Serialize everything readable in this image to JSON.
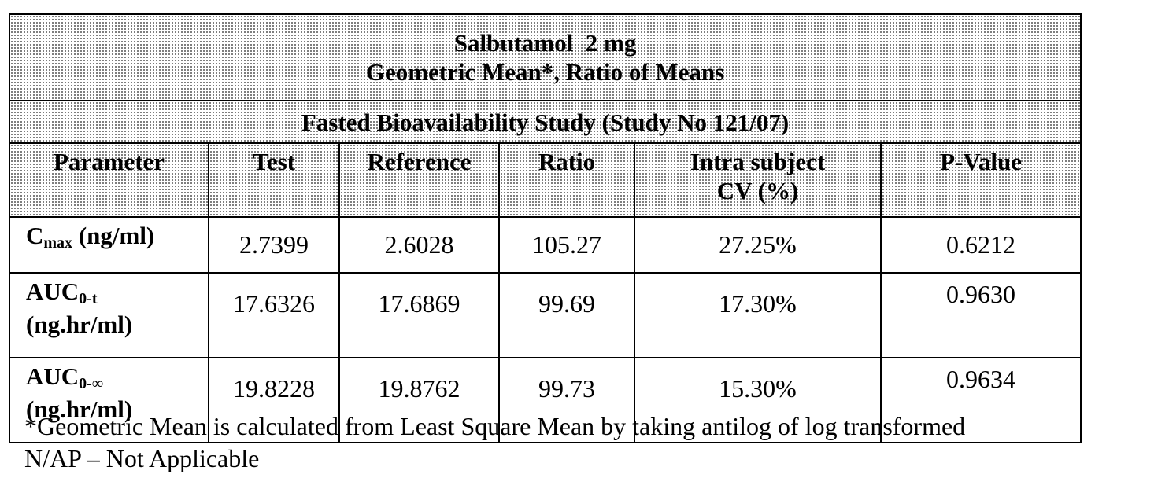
{
  "table": {
    "title_line1": "Salbutamol  2 mg",
    "title_line2": "Geometric Mean*, Ratio of Means",
    "study": "Fasted Bioavailability Study (Study No 121/07)",
    "headers": {
      "parameter": "Parameter",
      "test": "Test",
      "reference": "Reference",
      "ratio": "Ratio",
      "cv_line1": "Intra subject",
      "cv_line2": "CV (%)",
      "pvalue": "P-Value"
    },
    "rows": [
      {
        "param_main": "C",
        "param_sub": "max",
        "param_unit": " (ng/ml)",
        "test": "2.7399",
        "reference": "2.6028",
        "ratio": "105.27",
        "cv": "27.25%",
        "pvalue": "0.6212"
      },
      {
        "param_main": "AUC",
        "param_sub": "0-t",
        "param_unit": "(ng.hr/ml)",
        "test": "17.6326",
        "reference": "17.6869",
        "ratio": "99.69",
        "cv": "17.30%",
        "pvalue": "0.9630"
      },
      {
        "param_main": "AUC",
        "param_sub": "0-∞",
        "param_unit": "(ng.hr/ml)",
        "test": "19.8228",
        "reference": "19.8762",
        "ratio": "99.73",
        "cv": "15.30%",
        "pvalue": "0.9634"
      }
    ]
  },
  "footnotes": {
    "line1": "*Geometric Mean is calculated from Least Square Mean by taking antilog of log transformed",
    "line2": "N/AP – Not Applicable"
  }
}
